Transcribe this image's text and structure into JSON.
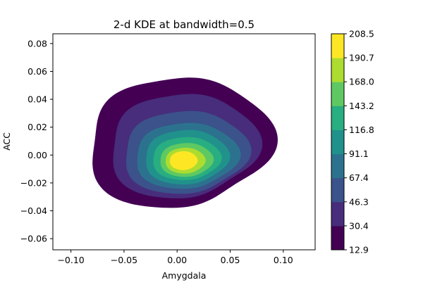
{
  "chart_data": {
    "type": "contour",
    "title": "2-d KDE at bandwidth=0.5",
    "xlabel": "Amygdala",
    "ylabel": "ACC",
    "xlim": [
      -0.117,
      0.13
    ],
    "ylim": [
      -0.068,
      0.087
    ],
    "xticks": [
      -0.1,
      -0.05,
      0.0,
      0.05,
      0.1
    ],
    "xtick_labels": [
      "−0.10",
      "−0.05",
      "0.00",
      "0.05",
      "0.10"
    ],
    "yticks": [
      -0.06,
      -0.04,
      -0.02,
      0.0,
      0.02,
      0.04,
      0.06,
      0.08
    ],
    "ytick_labels": [
      "−0.06",
      "−0.04",
      "−0.02",
      "0.00",
      "0.02",
      "0.04",
      "0.06",
      "0.08"
    ],
    "grid": false,
    "colormap": "viridis",
    "colorbar_levels": [
      12.9,
      30.4,
      46.3,
      67.4,
      91.1,
      116.8,
      143.2,
      168.0,
      190.7,
      208.5
    ],
    "colorbar_labels": [
      "12.9",
      "30.4",
      "46.3",
      "67.4",
      "91.1",
      "116.8",
      "143.2",
      "168.0",
      "190.7",
      "208.5"
    ],
    "band_colors": [
      "#440154",
      "#472d7b",
      "#3b528b",
      "#2c728e",
      "#21918c",
      "#28ae80",
      "#5ec962",
      "#addc30",
      "#fde725"
    ],
    "density_peak": {
      "x": 0.003,
      "y": -0.007
    },
    "contour_bounds_data_units": [
      {
        "level": 12.9,
        "x": [
          -0.094,
          0.097
        ],
        "y": [
          -0.048,
          0.066
        ]
      },
      {
        "level": 30.4,
        "x": [
          -0.072,
          0.083
        ],
        "y": [
          -0.039,
          0.052
        ]
      },
      {
        "level": 46.3,
        "x": [
          -0.058,
          0.073
        ],
        "y": [
          -0.034,
          0.038
        ]
      },
      {
        "level": 67.4,
        "x": [
          -0.046,
          0.063
        ],
        "y": [
          -0.029,
          0.028
        ]
      },
      {
        "level": 91.1,
        "x": [
          -0.036,
          0.053
        ],
        "y": [
          -0.025,
          0.022
        ]
      },
      {
        "level": 116.8,
        "x": [
          -0.028,
          0.045
        ],
        "y": [
          -0.021,
          0.016
        ]
      },
      {
        "level": 143.2,
        "x": [
          -0.02,
          0.037
        ],
        "y": [
          -0.018,
          0.011
        ]
      },
      {
        "level": 168.0,
        "x": [
          -0.014,
          0.029
        ],
        "y": [
          -0.015,
          0.007
        ]
      },
      {
        "level": 190.7,
        "x": [
          -0.009,
          0.021
        ],
        "y": [
          -0.012,
          0.004
        ]
      }
    ]
  }
}
